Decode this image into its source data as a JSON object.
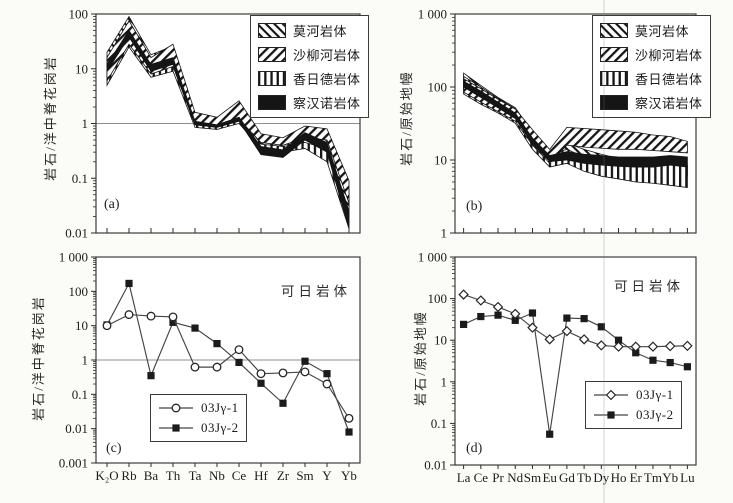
{
  "figure": {
    "background": "#fbfbf8",
    "ink_color": "#1c1c1c",
    "line_color": "#454545",
    "ref_line_color": "#8d8d8d"
  },
  "chart_data": [
    {
      "id": "a",
      "type": "area",
      "panel_label": "(a)",
      "ylabel": "岩石/洋中脊花岗岩",
      "ylim": [
        0.01,
        100
      ],
      "ref_line": 1,
      "show_x_labels": false,
      "grid": false,
      "legend": {
        "style": "patch",
        "position": "top-right"
      },
      "categories": [
        "K₂O",
        "Rb",
        "Ba",
        "Th",
        "Ta",
        "Nb",
        "Ce",
        "Hf",
        "Zr",
        "Sm",
        "Y",
        "Yb"
      ],
      "yticks": [
        {
          "label": "100",
          "value": 100
        },
        {
          "label": "10",
          "value": 10
        },
        {
          "label": "1",
          "value": 1
        },
        {
          "label": "0.1",
          "value": 0.1
        },
        {
          "label": "0.01",
          "value": 0.01
        }
      ],
      "draw_order": [
        2,
        0,
        1,
        3
      ],
      "series": [
        {
          "name": "莫河岩体",
          "pattern": "backslash",
          "top": [
            20,
            90,
            18,
            26,
            1.5,
            1.25,
            2.4,
            0.6,
            0.5,
            0.75,
            0.7,
            0.06
          ],
          "bottom": [
            8,
            35,
            9,
            12,
            1.0,
            0.9,
            1.4,
            0.42,
            0.38,
            0.45,
            0.35,
            0.02
          ]
        },
        {
          "name": "沙柳河岩体",
          "pattern": "slash",
          "top": [
            16,
            75,
            16,
            28,
            1.6,
            1.3,
            2.6,
            0.65,
            0.55,
            0.9,
            0.8,
            0.09
          ],
          "bottom": [
            6,
            28,
            8,
            11,
            0.95,
            0.85,
            1.2,
            0.45,
            0.4,
            0.55,
            0.5,
            0.035
          ]
        },
        {
          "name": "香日德岩体",
          "pattern": "vbars",
          "top": [
            14,
            60,
            14,
            20,
            1.3,
            1.1,
            1.8,
            0.5,
            0.45,
            0.6,
            0.5,
            0.04
          ],
          "bottom": [
            5,
            25,
            7,
            9,
            0.85,
            0.78,
            1.0,
            0.35,
            0.3,
            0.35,
            0.2,
            0.012
          ]
        },
        {
          "name": "察汉诺岩体",
          "pattern": "solid",
          "top": [
            12,
            50,
            12,
            16,
            1.1,
            0.95,
            1.3,
            0.38,
            0.33,
            0.68,
            0.45,
            0.025
          ],
          "bottom": [
            9,
            38,
            9,
            12,
            0.95,
            0.85,
            1.1,
            0.27,
            0.24,
            0.5,
            0.3,
            0.012
          ]
        }
      ]
    },
    {
      "id": "b",
      "type": "area",
      "panel_label": "(b)",
      "ylabel": "岩石/原始地幔",
      "ylim": [
        1,
        1000
      ],
      "ref_line": null,
      "show_x_labels": false,
      "grid": false,
      "legend": {
        "style": "patch",
        "position": "top-right"
      },
      "categories": [
        "La",
        "Ce",
        "Pr",
        "Nd",
        "Sm",
        "Eu",
        "Gd",
        "Tb",
        "Dy",
        "Ho",
        "Er",
        "Tm",
        "Yb",
        "Lu"
      ],
      "yticks": [
        {
          "label": "1 000",
          "value": 1000
        },
        {
          "label": "100",
          "value": 100
        },
        {
          "label": "10",
          "value": 10
        },
        {
          "label": "1",
          "value": 1
        }
      ],
      "draw_order": [
        0,
        2,
        1,
        3
      ],
      "series": [
        {
          "name": "莫河岩体",
          "pattern": "backslash",
          "top": [
            155,
            105,
            72,
            52,
            24,
            13,
            17,
            14,
            12,
            10.5,
            9.5,
            9,
            8.5,
            8
          ],
          "bottom": [
            95,
            70,
            52,
            38,
            17,
            9.5,
            12,
            10,
            8.5,
            7.5,
            7,
            6.5,
            6,
            6
          ]
        },
        {
          "name": "沙柳河岩体",
          "pattern": "slash",
          "top": [
            130,
            95,
            68,
            50,
            26,
            14,
            28,
            27,
            26,
            25,
            24,
            22,
            21,
            18
          ],
          "bottom": [
            85,
            62,
            46,
            34,
            16,
            9,
            16,
            15,
            14.5,
            14,
            14,
            13.5,
            13,
            12.5
          ]
        },
        {
          "name": "香日德岩体",
          "pattern": "vbars",
          "top": [
            140,
            100,
            70,
            50,
            22,
            12,
            14,
            11,
            9.5,
            9,
            8.8,
            8.5,
            8.5,
            8.5
          ],
          "bottom": [
            80,
            58,
            44,
            32,
            14,
            8,
            9,
            7,
            6,
            5.5,
            5,
            4.8,
            4.5,
            4.2
          ]
        },
        {
          "name": "察汉诺岩体",
          "pattern": "solid",
          "top": [
            120,
            88,
            62,
            44,
            20,
            11.5,
            13,
            12,
            11.5,
            11,
            11,
            11,
            11.5,
            11
          ],
          "bottom": [
            100,
            72,
            52,
            37,
            16.5,
            9.5,
            10,
            9,
            8.5,
            8.2,
            8,
            8,
            8.5,
            8
          ]
        }
      ]
    },
    {
      "id": "c",
      "type": "line",
      "panel_label": "(c)",
      "ylabel": "岩石/洋中脊花岗岩",
      "annotation": "可日岩体",
      "ylim": [
        0.001,
        1000
      ],
      "ref_line": 1,
      "show_x_labels": true,
      "grid": false,
      "legend": {
        "style": "marker",
        "position": "bottom-center"
      },
      "categories": [
        "K₂O",
        "Rb",
        "Ba",
        "Th",
        "Ta",
        "Nb",
        "Ce",
        "Hf",
        "Zr",
        "Sm",
        "Y",
        "Yb"
      ],
      "yticks": [
        {
          "label": "1 000",
          "value": 1000
        },
        {
          "label": "100",
          "value": 100
        },
        {
          "label": "10",
          "value": 10
        },
        {
          "label": "1",
          "value": 1
        },
        {
          "label": "0.1",
          "value": 0.1
        },
        {
          "label": "0.01",
          "value": 0.01
        },
        {
          "label": "0.001",
          "value": 0.001
        }
      ],
      "series": [
        {
          "name": "03Jγ-2",
          "marker": "square",
          "values": [
            10.5,
            170,
            0.35,
            12.5,
            8.5,
            3.0,
            0.85,
            0.21,
            0.055,
            0.92,
            0.4,
            0.008
          ]
        },
        {
          "name": "03Jγ-1",
          "marker": "circle",
          "values": [
            10,
            21,
            19,
            18,
            0.62,
            0.62,
            2.0,
            0.4,
            0.42,
            0.45,
            0.2,
            0.02
          ]
        }
      ],
      "legend_order": [
        "03Jγ-1",
        "03Jγ-2"
      ]
    },
    {
      "id": "d",
      "type": "line",
      "panel_label": "(d)",
      "ylabel": "岩石/原始地幔",
      "annotation": "可日岩体",
      "ylim": [
        0.01,
        1000
      ],
      "ref_line": null,
      "show_x_labels": true,
      "grid": false,
      "legend": {
        "style": "marker",
        "position": "bottom-center"
      },
      "categories": [
        "La",
        "Ce",
        "Pr",
        "Nd",
        "Sm",
        "Eu",
        "Gd",
        "Tb",
        "Dy",
        "Ho",
        "Er",
        "Tm",
        "Yb",
        "Lu"
      ],
      "yticks": [
        {
          "label": "1 000",
          "value": 1000
        },
        {
          "label": "100",
          "value": 100
        },
        {
          "label": "10",
          "value": 10
        },
        {
          "label": "1",
          "value": 1
        },
        {
          "label": "0.1",
          "value": 0.1
        },
        {
          "label": "0.01",
          "value": 0.01
        }
      ],
      "series": [
        {
          "name": "03Jγ-2",
          "marker": "square",
          "values": [
            24,
            37,
            40,
            30,
            45,
            0.055,
            34,
            33,
            21,
            10,
            5.0,
            3.3,
            2.9,
            2.3
          ]
        },
        {
          "name": "03Jγ-1",
          "marker": "diamond",
          "values": [
            125,
            90,
            63,
            43,
            20,
            10.5,
            16.5,
            10.5,
            7.5,
            7.0,
            7.0,
            7.0,
            7.2,
            7.3
          ]
        }
      ],
      "legend_order": [
        "03Jγ-1",
        "03Jγ-2"
      ]
    }
  ]
}
